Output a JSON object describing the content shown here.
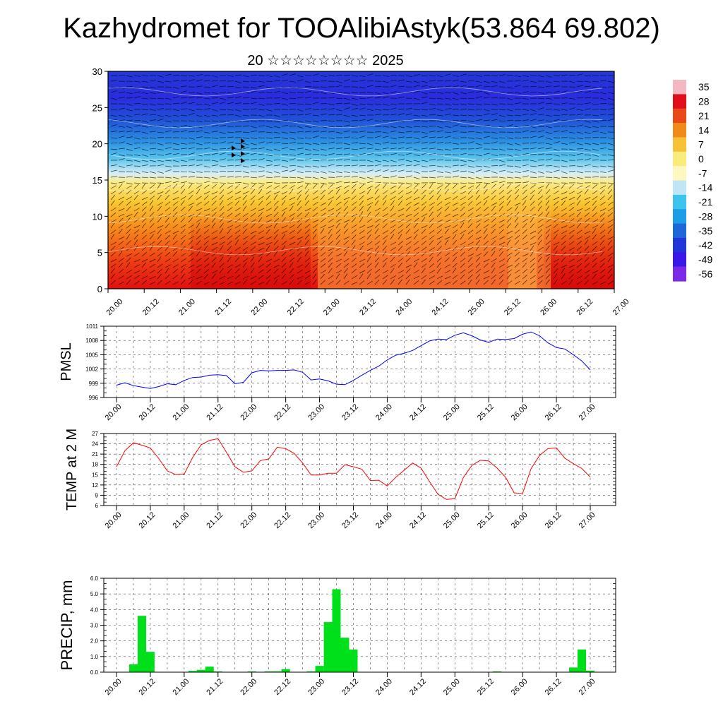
{
  "title": "Kazhydromet for TOOAlibiAstyk(53.864 69.802)",
  "subtitle": "20 ☆☆☆☆☆☆☆☆ 2025",
  "x_tick_labels": [
    "20.00",
    "20.12",
    "21.00",
    "21.12",
    "22.00",
    "22.12",
    "23.00",
    "23.12",
    "24.00",
    "24.12",
    "25.00",
    "25.12",
    "26.00",
    "26.12",
    "27.00"
  ],
  "colorbar": {
    "labels": [
      "35",
      "28",
      "21",
      "14",
      "7",
      "0",
      "-7",
      "-14",
      "-21",
      "-28",
      "-35",
      "-42",
      "-49",
      "-56"
    ],
    "colors": [
      "#f4b8c0",
      "#e0101a",
      "#e94818",
      "#f08a1a",
      "#f7c236",
      "#f9ec7c",
      "#fdf7c0",
      "#bfe6f4",
      "#3cc4ee",
      "#1c9ee6",
      "#1c68d8",
      "#2235d8",
      "#3a18e8",
      "#7b2be8"
    ]
  },
  "chart_data": [
    {
      "type": "heatmap",
      "ylim": [
        0,
        30
      ],
      "yticks": [
        "0",
        "5",
        "10",
        "15",
        "20",
        "25",
        "30"
      ],
      "colormap_range": [
        -56,
        35
      ],
      "description_rows_height": [
        0,
        5,
        10,
        15,
        20,
        25,
        30
      ],
      "row_temperature_profile": [
        30,
        22,
        14,
        2,
        -16,
        -40,
        -54
      ]
    },
    {
      "type": "line",
      "ylabel": "PMSL",
      "ylim": [
        996,
        1011
      ],
      "yticks": [
        "996",
        "999",
        "1002",
        "1005",
        "1008",
        "1011"
      ],
      "color": "#0000ff",
      "x": [
        0,
        3,
        6,
        9,
        12,
        15,
        18,
        21,
        24,
        27,
        30,
        33,
        36,
        39,
        42,
        45,
        48,
        51,
        54,
        57,
        60,
        63,
        66,
        69,
        72,
        75,
        78,
        81,
        84,
        87,
        90,
        93,
        96,
        99,
        102,
        105,
        108,
        111,
        114,
        117,
        120,
        123,
        126,
        129,
        132,
        135,
        138,
        141,
        144,
        147,
        150,
        153,
        156,
        159,
        162,
        165,
        168
      ],
      "values": [
        998.6,
        999.1,
        998.5,
        998.2,
        997.9,
        998.3,
        998.9,
        998.7,
        999.6,
        1000.2,
        1000.3,
        1000.7,
        1000.8,
        1000.6,
        998.9,
        999.2,
        1001.2,
        1001.7,
        1001.6,
        1001.7,
        1001.7,
        1001.8,
        1001.3,
        999.7,
        999.9,
        999.5,
        998.8,
        998.7,
        999.6,
        1000.7,
        1001.7,
        1002.6,
        1003.9,
        1004.9,
        1005.3,
        1005.9,
        1006.9,
        1007.9,
        1008.3,
        1008.2,
        1009.1,
        1009.6,
        1009.0,
        1008.1,
        1007.6,
        1008.3,
        1008.2,
        1008.4,
        1009.3,
        1009.8,
        1009.0,
        1007.5,
        1006.5,
        1006.2,
        1005.0,
        1003.7,
        1001.8
      ]
    },
    {
      "type": "line",
      "ylabel": "TEMP at 2 M",
      "ylim": [
        6,
        27
      ],
      "yticks": [
        "6",
        "9",
        "12",
        "15",
        "18",
        "21",
        "24",
        "27"
      ],
      "color": "#ff0000",
      "x": [
        0,
        3,
        6,
        9,
        12,
        15,
        18,
        21,
        24,
        27,
        30,
        33,
        36,
        39,
        42,
        45,
        48,
        51,
        54,
        57,
        60,
        63,
        66,
        69,
        72,
        75,
        78,
        81,
        84,
        87,
        90,
        93,
        96,
        99,
        102,
        105,
        108,
        111,
        114,
        117,
        120,
        123,
        126,
        129,
        132,
        135,
        138,
        141,
        144,
        147,
        150,
        153,
        156,
        159,
        162,
        165,
        168
      ],
      "values": [
        17.3,
        22.0,
        24.3,
        23.6,
        22.8,
        19.7,
        16.1,
        15.0,
        15.2,
        20.0,
        23.7,
        25.0,
        25.5,
        21.5,
        17.3,
        15.7,
        16.1,
        19.1,
        19.6,
        23.0,
        22.6,
        21.2,
        18.4,
        14.9,
        14.9,
        15.4,
        15.4,
        17.9,
        17.3,
        16.6,
        13.3,
        13.4,
        11.7,
        14.2,
        16.3,
        18.4,
        16.9,
        13.0,
        9.3,
        7.8,
        8.0,
        14.2,
        17.7,
        19.2,
        19.0,
        16.9,
        14.2,
        9.7,
        9.5,
        16.7,
        20.6,
        22.6,
        22.8,
        19.8,
        18.2,
        16.8,
        14.3
      ]
    },
    {
      "type": "bar",
      "ylabel": "PRECIP, mm",
      "ylim": [
        0,
        6
      ],
      "yticks": [
        "0.0",
        "1.0",
        "2.0",
        "3.0",
        "4.0",
        "5.0",
        "6.0"
      ],
      "color": "#00e01a",
      "x": [
        6,
        9,
        12,
        24,
        27,
        30,
        33,
        36,
        48,
        51,
        54,
        57,
        60,
        63,
        69,
        72,
        75,
        78,
        81,
        84,
        87,
        90,
        93,
        114,
        135,
        162,
        165,
        168
      ],
      "values": [
        0.5,
        3.6,
        1.3,
        0.02,
        0.08,
        0.15,
        0.35,
        0.05,
        0.05,
        0.02,
        0.05,
        0.05,
        0.2,
        0.02,
        0.05,
        0.4,
        3.2,
        5.3,
        2.2,
        1.45,
        0.02,
        0.02,
        0.02,
        0.02,
        0.05,
        0.3,
        1.45,
        0.1
      ]
    }
  ]
}
